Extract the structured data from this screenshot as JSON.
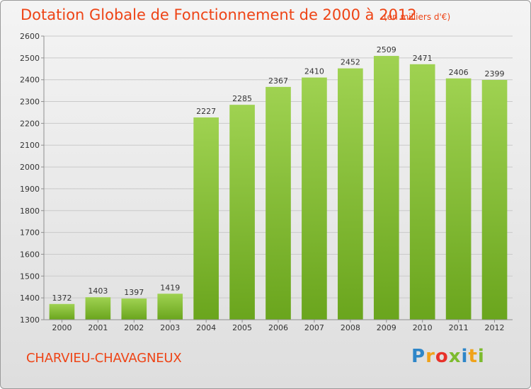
{
  "header": {
    "title": "Dotation Globale de Fonctionnement de 2000 à 2012",
    "subtitle": "(en milliers d'€)"
  },
  "footer": {
    "town": "CHARVIEU-CHAVAGNEUX",
    "logo_letters": [
      "P",
      "r",
      "o",
      "x",
      "i",
      "t",
      "i"
    ],
    "logo_colors": [
      "#2e86c8",
      "#f0a21a",
      "#e8312a",
      "#7dbb2e",
      "#2e86c8",
      "#f0a21a",
      "#7dbb2e"
    ]
  },
  "chart_data": {
    "type": "bar",
    "categories": [
      "2000",
      "2001",
      "2002",
      "2003",
      "2004",
      "2005",
      "2006",
      "2007",
      "2008",
      "2009",
      "2010",
      "2011",
      "2012"
    ],
    "values": [
      1372,
      1403,
      1397,
      1419,
      2227,
      2285,
      2367,
      2410,
      2452,
      2509,
      2471,
      2406,
      2399
    ],
    "ylim": [
      1300,
      2600
    ],
    "yticks": [
      1300,
      1400,
      1500,
      1600,
      1700,
      1800,
      1900,
      2000,
      2100,
      2200,
      2300,
      2400,
      2500,
      2600
    ],
    "grid": true,
    "colors": {
      "bar_light": "#9fd251",
      "bar_dark": "#6aa51d",
      "grid": "#c9c9c9",
      "axis": "#8f8f8f",
      "text": "#333333"
    }
  }
}
